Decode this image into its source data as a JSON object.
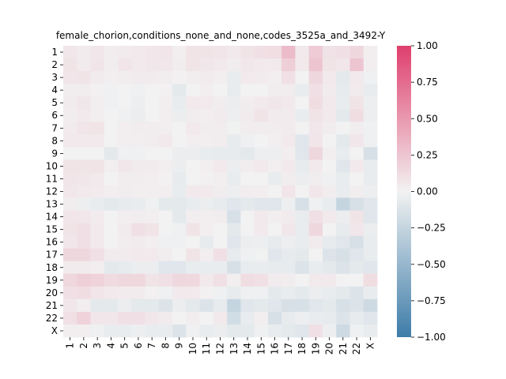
{
  "chart_data": {
    "type": "heatmap",
    "title": "female_chorion,conditions_none_and_none,codes_3525a_and_3492-Y",
    "xlabel": "",
    "ylabel": "",
    "x_categories": [
      "1",
      "2",
      "3",
      "4",
      "5",
      "6",
      "7",
      "8",
      "9",
      "10",
      "11",
      "12",
      "13",
      "14",
      "15",
      "16",
      "17",
      "18",
      "19",
      "20",
      "21",
      "22",
      "X"
    ],
    "y_categories": [
      "1",
      "2",
      "3",
      "4",
      "5",
      "6",
      "7",
      "8",
      "9",
      "10",
      "11",
      "12",
      "13",
      "14",
      "15",
      "16",
      "17",
      "18",
      "19",
      "20",
      "21",
      "22",
      "X"
    ],
    "colorbar": {
      "min": -1.0,
      "max": 1.0,
      "ticks": [
        1.0,
        0.75,
        0.5,
        0.25,
        0.0,
        -0.25,
        -0.5,
        -0.75,
        -1.0
      ],
      "tick_labels": [
        "1.00",
        "0.75",
        "0.50",
        "0.25",
        "0.00",
        "−0.25",
        "−0.50",
        "−0.75",
        "−1.00"
      ],
      "color_low": "#3d7ca8",
      "color_mid": "#f2f2f2",
      "color_high": "#df3f6d"
    },
    "values": [
      [
        0.06,
        0.04,
        0.06,
        0.03,
        0.04,
        0.05,
        0.06,
        0.07,
        0.02,
        0.08,
        0.08,
        0.07,
        0.05,
        0.08,
        0.1,
        0.11,
        0.3,
        0.05,
        0.22,
        0.09,
        0.1,
        0.15,
        0.02
      ],
      [
        0.08,
        0.04,
        0.07,
        0.03,
        0.07,
        0.05,
        0.06,
        0.06,
        0.03,
        0.08,
        0.06,
        0.05,
        0.03,
        0.06,
        0.05,
        0.05,
        0.2,
        0.05,
        0.25,
        0.08,
        0.06,
        0.25,
        0.02
      ],
      [
        0.07,
        0.08,
        0.04,
        0.02,
        0.03,
        0.04,
        0.04,
        0.03,
        0.01,
        0.03,
        0.04,
        0.02,
        -0.05,
        0.05,
        0.04,
        0.02,
        0.1,
        0.0,
        0.15,
        0.05,
        -0.08,
        0.05,
        -0.02
      ],
      [
        0.03,
        0.03,
        0.01,
        -0.02,
        0.0,
        -0.02,
        0.0,
        0.01,
        -0.08,
        0.0,
        0.02,
        0.0,
        -0.05,
        0.0,
        0.0,
        0.03,
        0.03,
        -0.05,
        0.1,
        0.04,
        -0.06,
        0.04,
        -0.05
      ],
      [
        0.04,
        0.06,
        0.02,
        -0.02,
        0.0,
        -0.03,
        0.0,
        0.02,
        -0.05,
        0.05,
        0.05,
        0.03,
        -0.04,
        0.03,
        0.05,
        0.06,
        0.05,
        0.0,
        0.12,
        0.05,
        -0.05,
        0.08,
        -0.03
      ],
      [
        0.03,
        0.05,
        0.02,
        0.0,
        -0.02,
        -0.04,
        0.0,
        0.02,
        -0.04,
        0.03,
        0.02,
        0.04,
        -0.03,
        0.04,
        0.08,
        0.04,
        0.04,
        -0.05,
        0.08,
        0.05,
        -0.08,
        0.12,
        -0.03
      ],
      [
        0.04,
        0.07,
        0.08,
        0.0,
        0.02,
        0.03,
        0.03,
        0.02,
        0.0,
        0.05,
        0.03,
        0.03,
        -0.01,
        0.03,
        0.03,
        0.03,
        0.04,
        0.0,
        0.06,
        0.03,
        0.0,
        0.03,
        -0.02
      ],
      [
        0.05,
        0.05,
        0.05,
        0.0,
        0.02,
        0.02,
        0.03,
        0.05,
        0.0,
        0.02,
        0.02,
        0.03,
        -0.06,
        -0.02,
        0.0,
        0.02,
        0.05,
        -0.1,
        0.07,
        0.0,
        -0.08,
        0.06,
        -0.02
      ],
      [
        0.0,
        0.0,
        0.0,
        -0.08,
        -0.02,
        -0.02,
        0.0,
        0.0,
        -0.04,
        -0.04,
        -0.05,
        -0.06,
        -0.06,
        -0.08,
        -0.03,
        -0.03,
        0.02,
        -0.1,
        0.15,
        0.02,
        -0.05,
        0.0,
        -0.15
      ],
      [
        0.08,
        0.08,
        0.08,
        0.02,
        0.06,
        0.04,
        0.04,
        0.02,
        -0.04,
        0.0,
        0.02,
        0.05,
        -0.04,
        0.03,
        0.05,
        0.02,
        0.05,
        -0.06,
        0.05,
        0.0,
        -0.1,
        0.05,
        -0.05
      ],
      [
        0.07,
        0.06,
        0.05,
        0.0,
        0.03,
        0.03,
        0.02,
        0.01,
        -0.06,
        0.0,
        0.01,
        0.02,
        -0.05,
        0.0,
        0.0,
        -0.05,
        0.03,
        -0.04,
        0.03,
        -0.02,
        -0.05,
        0.0,
        -0.05
      ],
      [
        0.06,
        0.05,
        0.04,
        0.02,
        0.03,
        0.02,
        0.02,
        0.02,
        -0.05,
        0.05,
        0.05,
        0.03,
        -0.03,
        0.03,
        0.02,
        0.0,
        0.07,
        0.0,
        0.06,
        0.03,
        -0.05,
        0.03,
        -0.03
      ],
      [
        0.03,
        -0.03,
        -0.05,
        -0.08,
        -0.06,
        -0.05,
        -0.02,
        -0.08,
        -0.08,
        -0.05,
        -0.04,
        -0.06,
        -0.1,
        -0.08,
        -0.1,
        -0.1,
        -0.03,
        -0.15,
        -0.02,
        -0.05,
        -0.25,
        -0.15,
        -0.1
      ],
      [
        0.07,
        0.06,
        0.04,
        0.0,
        0.02,
        0.03,
        0.02,
        0.0,
        -0.08,
        0.02,
        0.02,
        0.03,
        -0.15,
        0.0,
        0.05,
        0.02,
        0.04,
        -0.05,
        0.1,
        0.05,
        -0.04,
        0.08,
        -0.1
      ],
      [
        0.08,
        0.1,
        0.05,
        0.0,
        0.04,
        0.1,
        0.08,
        0.0,
        -0.02,
        0.08,
        0.02,
        0.0,
        -0.08,
        0.0,
        0.05,
        0.0,
        0.06,
        -0.05,
        0.15,
        0.0,
        -0.06,
        0.06,
        -0.04
      ],
      [
        0.06,
        0.1,
        0.05,
        0.0,
        0.03,
        0.04,
        0.02,
        -0.02,
        -0.02,
        0.0,
        -0.06,
        0.0,
        -0.1,
        -0.04,
        -0.03,
        -0.06,
        -0.03,
        -0.05,
        0.04,
        -0.06,
        -0.1,
        -0.15,
        -0.05
      ],
      [
        0.15,
        0.15,
        0.1,
        0.04,
        0.04,
        0.05,
        0.05,
        0.03,
        0.0,
        0.08,
        0.02,
        0.1,
        -0.06,
        -0.02,
        -0.01,
        -0.1,
        -0.06,
        -0.08,
        0.0,
        -0.12,
        -0.15,
        -0.1,
        -0.05
      ],
      [
        0.04,
        0.04,
        0.02,
        -0.08,
        -0.06,
        -0.04,
        -0.04,
        -0.1,
        -0.1,
        -0.05,
        -0.05,
        -0.05,
        -0.15,
        -0.05,
        -0.05,
        -0.06,
        -0.06,
        -0.12,
        -0.05,
        -0.08,
        -0.12,
        -0.08,
        -0.1
      ],
      [
        0.15,
        0.2,
        0.18,
        0.13,
        0.15,
        0.15,
        0.08,
        0.1,
        0.15,
        0.14,
        0.05,
        0.1,
        0.02,
        0.12,
        0.1,
        0.04,
        0.03,
        0.0,
        0.05,
        0.05,
        0.0,
        0.0,
        0.12
      ],
      [
        0.1,
        0.12,
        0.07,
        0.05,
        0.04,
        0.04,
        0.01,
        -0.02,
        0.05,
        0.05,
        0.01,
        -0.02,
        -0.06,
        -0.02,
        -0.02,
        -0.08,
        -0.05,
        -0.08,
        -0.04,
        -0.05,
        -0.08,
        -0.12,
        -0.05
      ],
      [
        0.06,
        0.02,
        -0.08,
        -0.08,
        -0.04,
        -0.08,
        -0.08,
        -0.12,
        -0.04,
        -0.08,
        -0.12,
        -0.06,
        -0.25,
        -0.1,
        -0.08,
        -0.1,
        -0.15,
        -0.15,
        -0.1,
        -0.08,
        -0.15,
        -0.12,
        -0.2
      ],
      [
        0.1,
        0.18,
        0.06,
        0.06,
        0.1,
        0.1,
        0.06,
        0.04,
        0.0,
        0.03,
        0.0,
        0.05,
        -0.18,
        -0.05,
        0.02,
        -0.15,
        -0.06,
        -0.03,
        -0.05,
        -0.06,
        -0.12,
        -0.06,
        -0.1
      ],
      [
        0.02,
        0.02,
        -0.02,
        -0.05,
        -0.05,
        -0.03,
        -0.05,
        -0.05,
        -0.12,
        -0.02,
        -0.05,
        -0.04,
        -0.08,
        -0.08,
        -0.02,
        -0.05,
        -0.08,
        -0.1,
        0.1,
        -0.03,
        -0.2,
        -0.02,
        -0.05
      ]
    ]
  }
}
